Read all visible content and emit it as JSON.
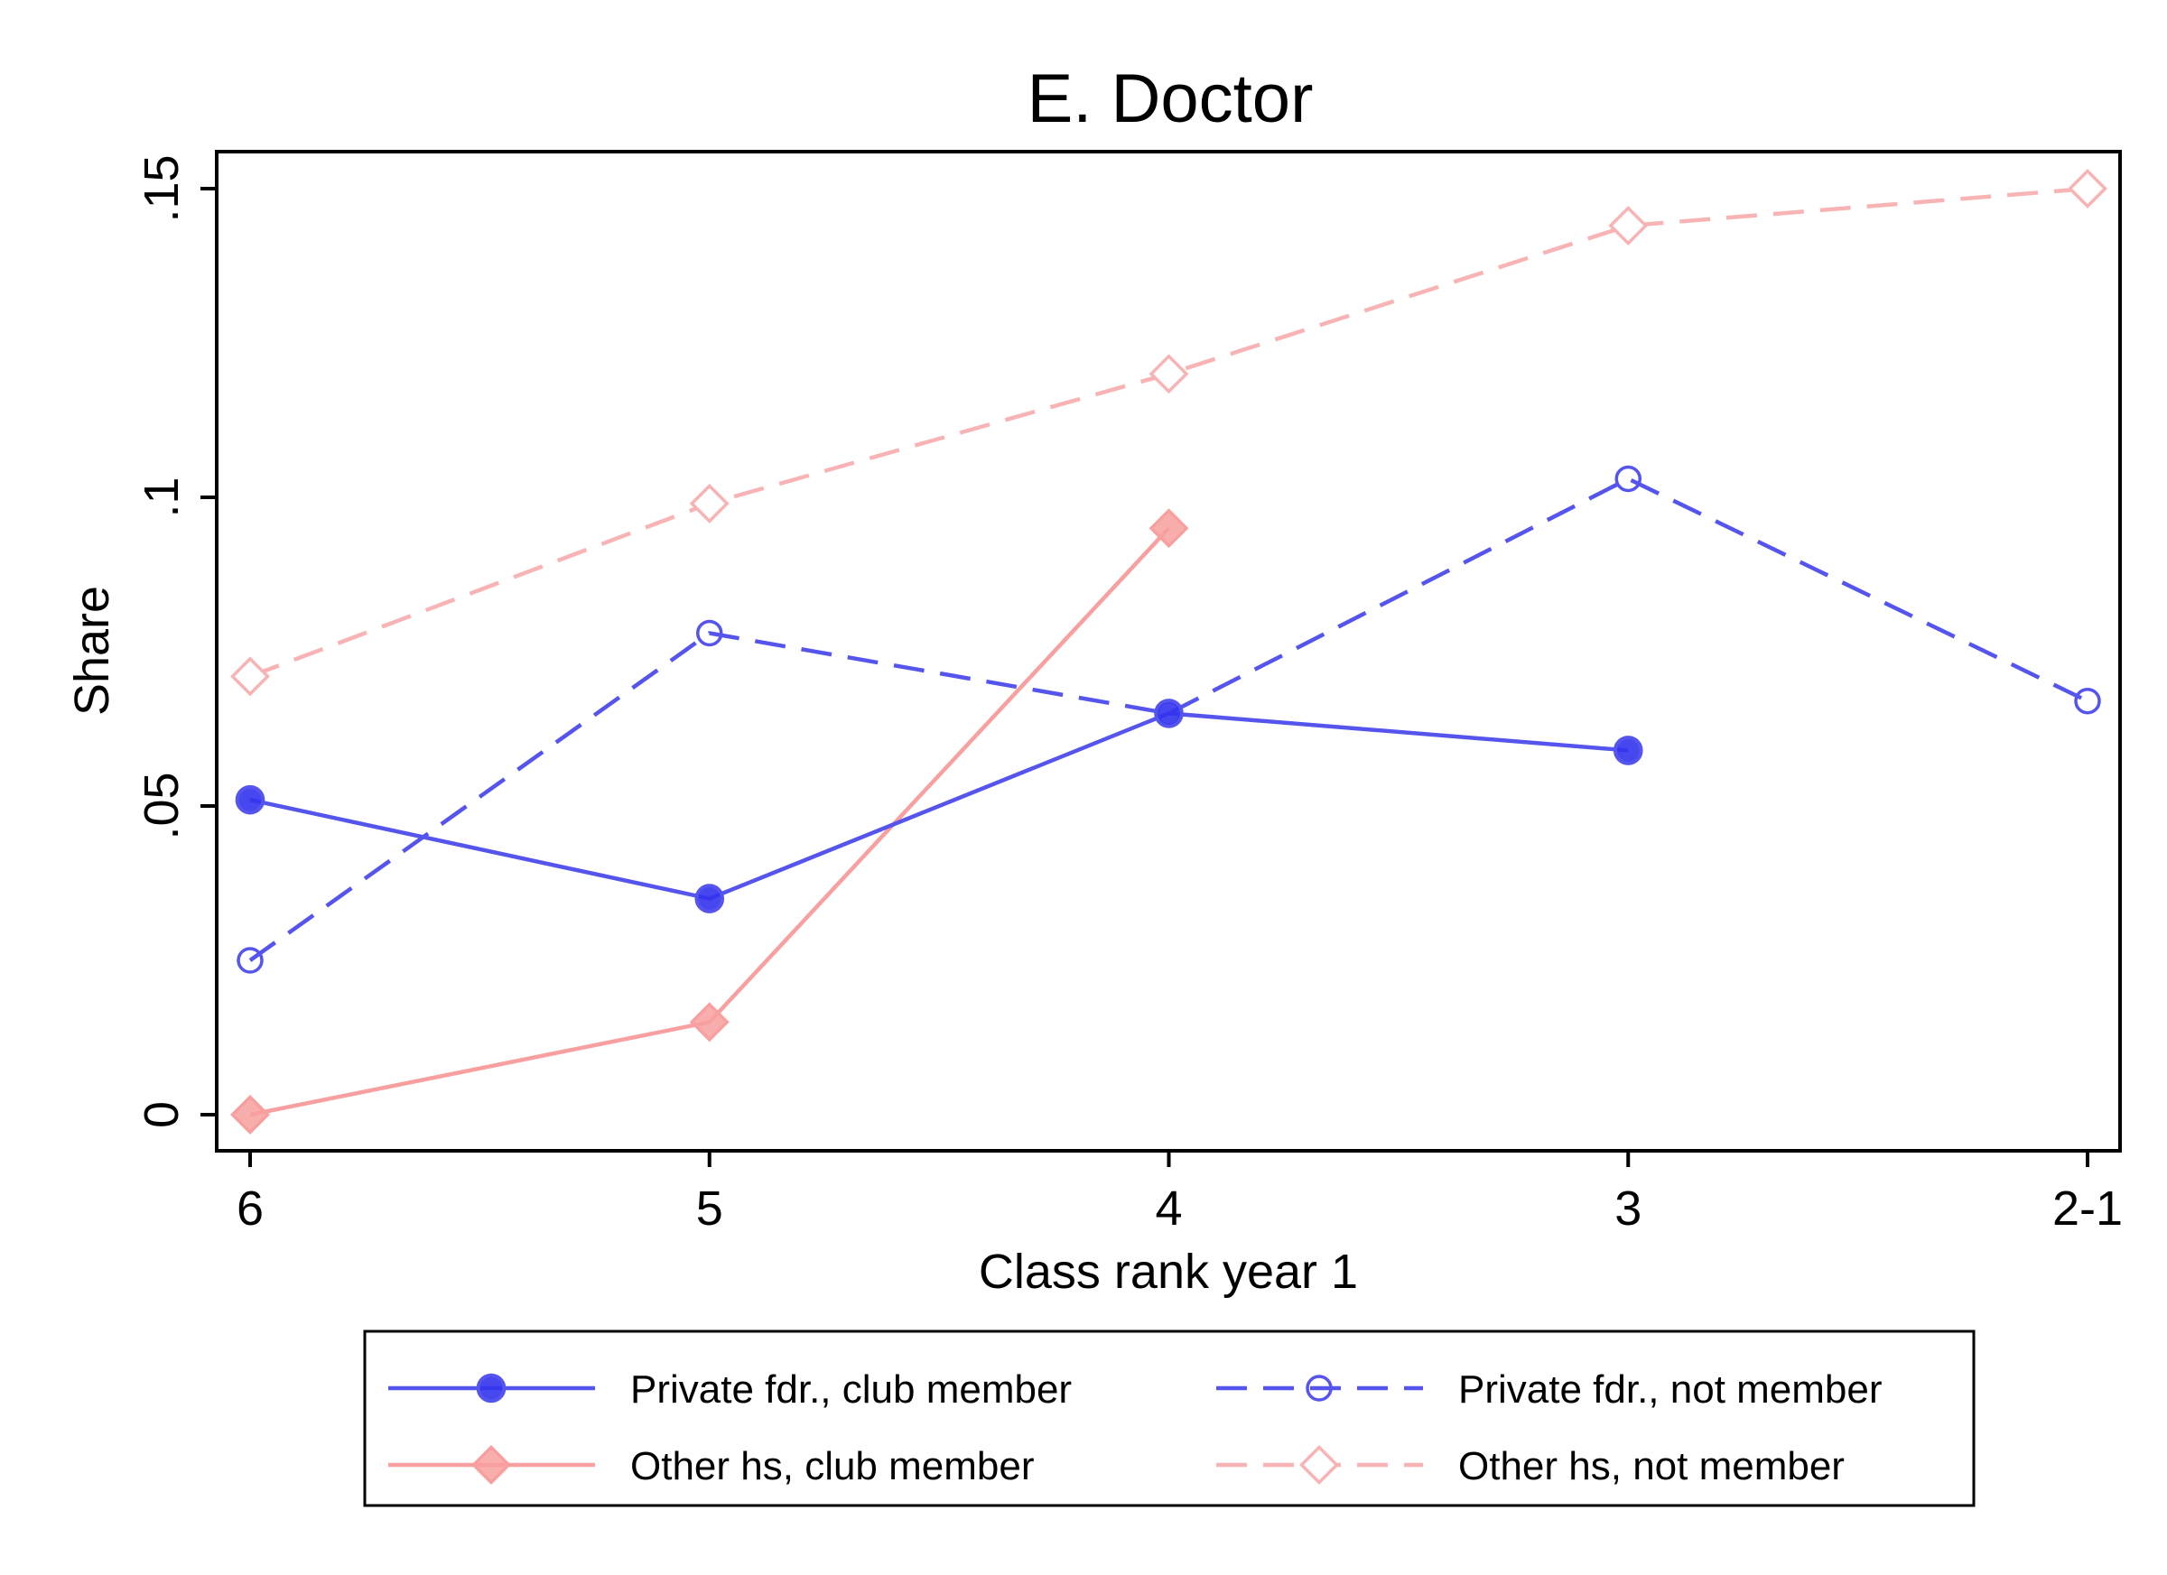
{
  "chart_data": {
    "type": "line",
    "title": "E. Doctor",
    "xlabel": "Class rank year 1",
    "ylabel": "Share",
    "categories": [
      "6",
      "5",
      "4",
      "3",
      "2-1"
    ],
    "yticks": [
      0,
      0.05,
      0.1,
      0.15
    ],
    "ytick_labels": [
      "0",
      ".05",
      ".1",
      ".15"
    ],
    "ylim": [
      0,
      0.155
    ],
    "grid": false,
    "legend_position": "bottom",
    "series": [
      {
        "name": "Private fdr., club member",
        "values": [
          0.051,
          0.035,
          0.065,
          0.059,
          null
        ],
        "color": "#5555ee",
        "dash": "solid",
        "marker": "circle-filled"
      },
      {
        "name": "Private fdr., not member",
        "values": [
          0.025,
          0.078,
          0.065,
          0.103,
          0.067
        ],
        "color": "#5555ee",
        "dash": "dashed",
        "marker": "circle-hollow"
      },
      {
        "name": "Other hs, club member",
        "values": [
          0.0,
          0.015,
          0.095,
          null,
          null
        ],
        "color": "#f8a0a0",
        "dash": "solid",
        "marker": "diamond-filled"
      },
      {
        "name": "Other hs, not member",
        "values": [
          0.071,
          0.099,
          0.12,
          0.144,
          0.15
        ],
        "color": "#f8b4b4",
        "dash": "dashed",
        "marker": "diamond-hollow"
      }
    ]
  }
}
